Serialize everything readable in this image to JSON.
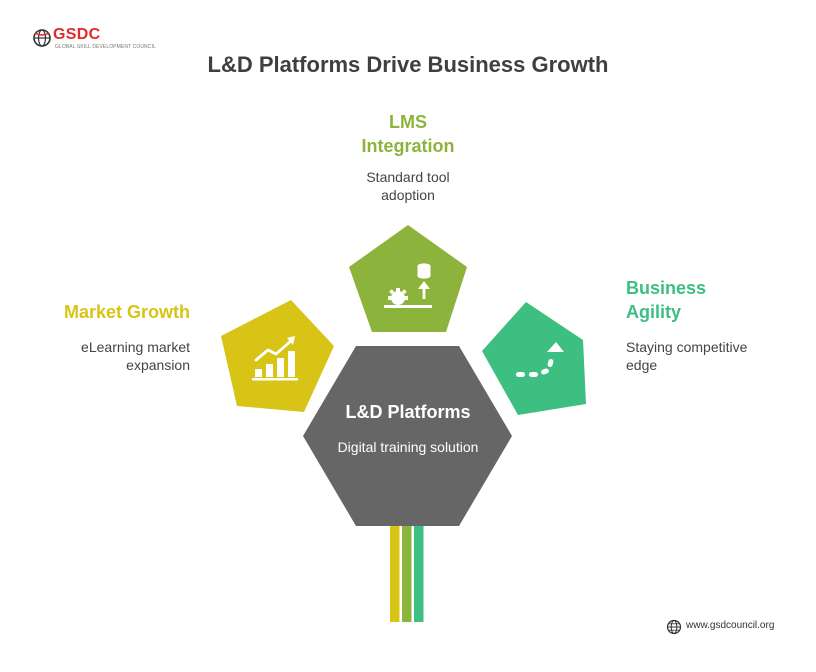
{
  "logo": {
    "text": "GSDC",
    "subtext": "GLOBAL SKILL DEVELOPMENT COUNCIL"
  },
  "title": "L&D Platforms Drive Business Growth",
  "center": {
    "title": "L&D Platforms",
    "description": "Digital training solution",
    "color": "#666666"
  },
  "nodes": [
    {
      "title": "LMS Integration",
      "title_lines": [
        "LMS",
        "Integration"
      ],
      "description_lines": [
        "Standard tool",
        "adoption"
      ],
      "color": "#8cb43c",
      "icon": "gear-database-icon"
    },
    {
      "title": "Market Growth",
      "title_lines": [
        "Market Growth"
      ],
      "description_lines": [
        "eLearning market",
        "expansion"
      ],
      "color": "#d8c417",
      "icon": "growth-chart-icon"
    },
    {
      "title": "Business Agility",
      "title_lines": [
        "Business",
        "Agility"
      ],
      "description_lines": [
        "Staying competitive",
        "edge"
      ],
      "color": "#3dbf81",
      "icon": "dotted-path-arrow-icon"
    }
  ],
  "stem_colors": [
    "#d8c417",
    "#8cb43c",
    "#3dbf81"
  ],
  "footer": {
    "text": "www.gsdcouncil.org",
    "icon": "globe-icon"
  }
}
